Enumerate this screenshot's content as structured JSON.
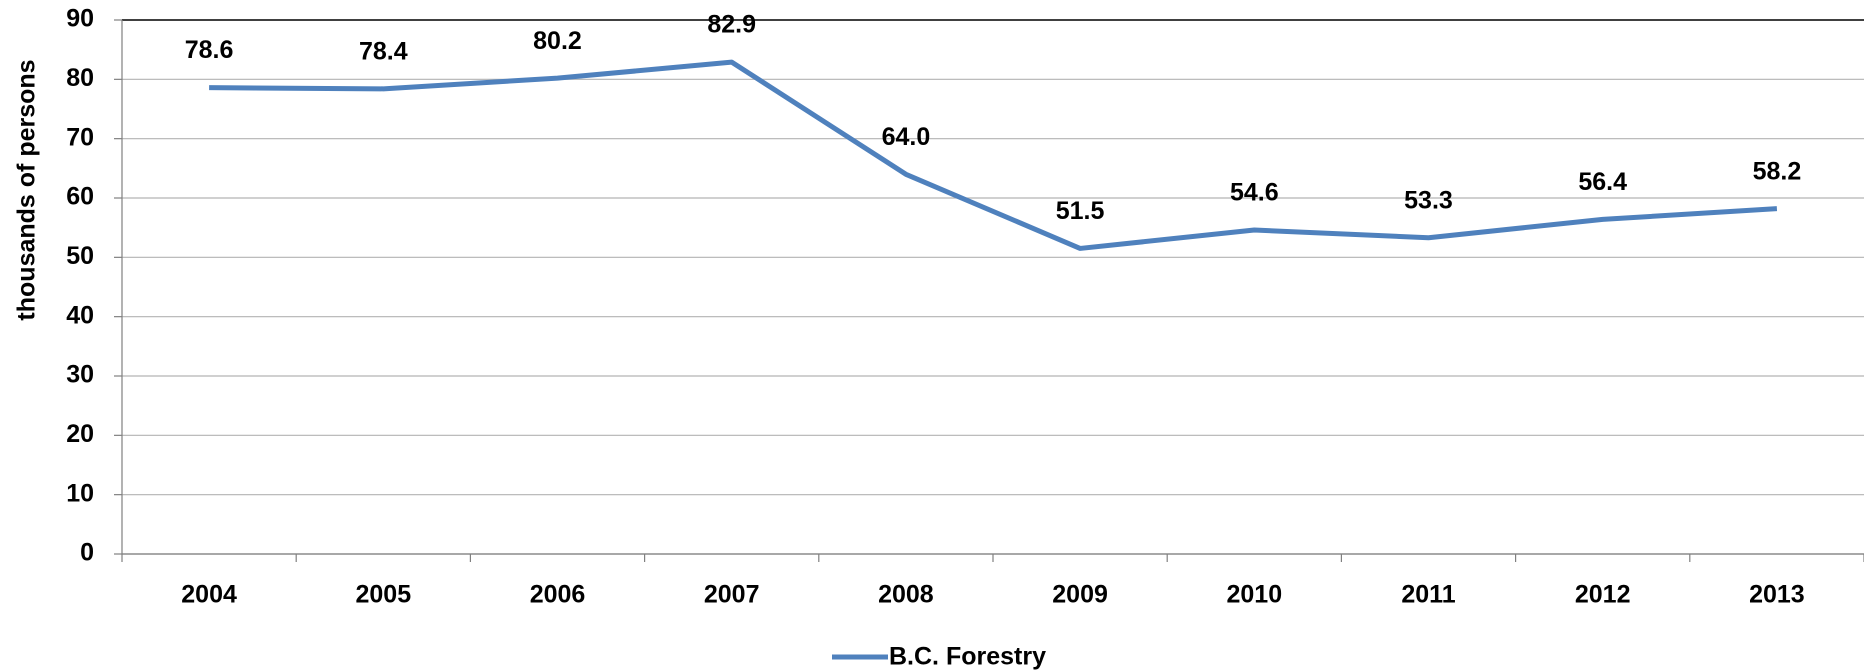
{
  "chart_data": {
    "type": "line",
    "y_label": "thousands of persons",
    "categories": [
      "2004",
      "2005",
      "2006",
      "2007",
      "2008",
      "2009",
      "2010",
      "2011",
      "2012",
      "2013"
    ],
    "series": [
      {
        "name": "B.C. Forestry",
        "color": "#4f81bd",
        "values": [
          78.6,
          78.4,
          80.2,
          82.9,
          64.0,
          51.5,
          54.6,
          53.3,
          56.4,
          58.2
        ],
        "value_labels": [
          "78.6",
          "78.4",
          "80.2",
          "82.9",
          "64.0",
          "51.5",
          "54.6",
          "53.3",
          "56.4",
          "58.2"
        ]
      }
    ],
    "ylim": [
      0,
      90
    ],
    "yticks": [
      0,
      10,
      20,
      30,
      40,
      50,
      60,
      70,
      80,
      90
    ],
    "grid": true,
    "legend": "bottom"
  }
}
